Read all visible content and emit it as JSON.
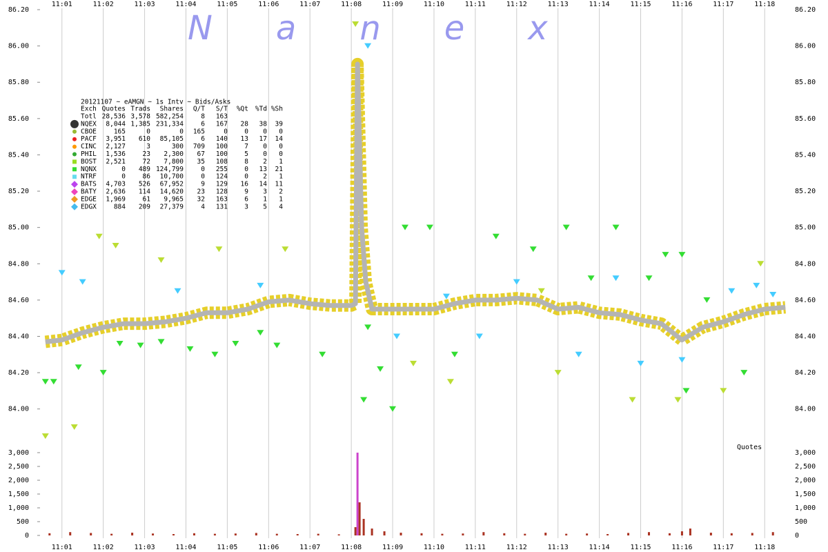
{
  "chart_data": [
    {
      "type": "line",
      "watermark": "Nanex",
      "stats_table": {
        "header": "20121107 ~ eAMGN ~ 1s Intv ~ Bids/Asks",
        "columns": [
          "Exch",
          "Quotes",
          "Trads",
          "Shares",
          "Q/T",
          "S/T",
          "%Qt",
          "%Td",
          "%Sh"
        ],
        "rows": [
          {
            "cells": [
              "Totl",
              "28,536",
              "3,578",
              "582,254",
              "8",
              "163"
            ]
          },
          {
            "cells": [
              "NQEX",
              "8,044",
              "1,385",
              "231,334",
              "6",
              "167",
              "28",
              "38",
              "39"
            ],
            "color": "#333333",
            "shape": "circle-large"
          },
          {
            "cells": [
              "CBOE",
              "165",
              "0",
              "0",
              "165",
              "0",
              "0",
              "0",
              "0"
            ],
            "color": "#99bb33",
            "shape": "circle"
          },
          {
            "cells": [
              "PACF",
              "3,951",
              "610",
              "85,105",
              "6",
              "140",
              "13",
              "17",
              "14"
            ],
            "color": "#ee2222",
            "shape": "circle"
          },
          {
            "cells": [
              "CINC",
              "2,127",
              "3",
              "300",
              "709",
              "100",
              "7",
              "0",
              "0"
            ],
            "color": "#ff9900",
            "shape": "circle"
          },
          {
            "cells": [
              "PHIL",
              "1,536",
              "23",
              "2,300",
              "67",
              "100",
              "5",
              "0",
              "0"
            ],
            "color": "#33aa33",
            "shape": "circle"
          },
          {
            "cells": [
              "BOST",
              "2,521",
              "72",
              "7,800",
              "35",
              "108",
              "8",
              "2",
              "1"
            ],
            "color": "#99dd22",
            "shape": "square"
          },
          {
            "cells": [
              "NQNX",
              "0",
              "489",
              "124,799",
              "0",
              "255",
              "0",
              "13",
              "21"
            ],
            "color": "#33dd33",
            "shape": "square"
          },
          {
            "cells": [
              "NTRF",
              "0",
              "86",
              "10,700",
              "0",
              "124",
              "0",
              "2",
              "1"
            ],
            "color": "#66ddee",
            "shape": "square"
          },
          {
            "cells": [
              "BATS",
              "4,703",
              "526",
              "67,952",
              "9",
              "129",
              "16",
              "14",
              "11"
            ],
            "color": "#bb44ee",
            "shape": "diamond"
          },
          {
            "cells": [
              "BATY",
              "2,636",
              "114",
              "14,620",
              "23",
              "128",
              "9",
              "3",
              "2"
            ],
            "color": "#ee44bb",
            "shape": "diamond"
          },
          {
            "cells": [
              "EDGE",
              "1,969",
              "61",
              "9,965",
              "32",
              "163",
              "6",
              "1",
              "1"
            ],
            "color": "#ee9922",
            "shape": "diamond"
          },
          {
            "cells": [
              "EDGX",
              "884",
              "209",
              "27,379",
              "4",
              "131",
              "3",
              "5",
              "4"
            ],
            "color": "#44bbee",
            "shape": "diamond"
          }
        ]
      },
      "xlim": [
        660.47,
        678.53
      ],
      "xticks": [
        {
          "value": 661,
          "label": "11:01"
        },
        {
          "value": 662,
          "label": "11:02"
        },
        {
          "value": 663,
          "label": "11:03"
        },
        {
          "value": 664,
          "label": "11:04"
        },
        {
          "value": 665,
          "label": "11:05"
        },
        {
          "value": 666,
          "label": "11:06"
        },
        {
          "value": 667,
          "label": "11:07"
        },
        {
          "value": 668,
          "label": "11:08"
        },
        {
          "value": 669,
          "label": "11:09"
        },
        {
          "value": 670,
          "label": "11:10"
        },
        {
          "value": 671,
          "label": "11:11"
        },
        {
          "value": 672,
          "label": "11:12"
        },
        {
          "value": 673,
          "label": "11:13"
        },
        {
          "value": 674,
          "label": "11:14"
        },
        {
          "value": 675,
          "label": "11:15"
        },
        {
          "value": 676,
          "label": "11:16"
        },
        {
          "value": 677,
          "label": "11:17"
        },
        {
          "value": 678,
          "label": "11:18"
        }
      ],
      "ylim": [
        83.9,
        86.2
      ],
      "yticks": [
        {
          "value": 84,
          "label": "84.00"
        },
        {
          "value": 84.2,
          "label": "84.20"
        },
        {
          "value": 84.4,
          "label": "84.40"
        },
        {
          "value": 84.6,
          "label": "84.60"
        },
        {
          "value": 84.8,
          "label": "84.80"
        },
        {
          "value": 85,
          "label": "85.00"
        },
        {
          "value": 85.2,
          "label": "85.20"
        },
        {
          "value": 85.4,
          "label": "85.40"
        },
        {
          "value": 85.6,
          "label": "85.60"
        },
        {
          "value": 85.8,
          "label": "85.80"
        },
        {
          "value": 86,
          "label": "86.00"
        },
        {
          "value": 86.2,
          "label": "86.20"
        }
      ],
      "grid": "x",
      "series": [
        {
          "color": "#b4b4b4",
          "band_color": "#e6cf2a",
          "x": [
            660.6,
            661,
            661.5,
            662,
            662.5,
            663,
            663.5,
            664,
            664.5,
            665,
            665.5,
            666,
            666.5,
            667,
            667.5,
            668,
            668.1,
            668.15,
            668.25,
            668.35,
            668.5,
            669,
            669.5,
            670,
            670.5,
            671,
            671.5,
            672,
            672.5,
            673,
            673.5,
            674,
            674.5,
            675,
            675.5,
            676,
            676.5,
            677,
            677.5,
            678,
            678.5
          ],
          "values": [
            84.37,
            84.38,
            84.42,
            84.45,
            84.47,
            84.47,
            84.48,
            84.5,
            84.53,
            84.53,
            84.55,
            84.59,
            84.6,
            84.58,
            84.57,
            84.57,
            84.58,
            85.9,
            85.0,
            84.7,
            84.55,
            84.55,
            84.55,
            84.55,
            84.58,
            84.6,
            84.6,
            84.61,
            84.6,
            84.55,
            84.56,
            84.53,
            84.52,
            84.49,
            84.47,
            84.38,
            84.45,
            84.48,
            84.52,
            84.55,
            84.56
          ]
        },
        {
          "color": "#33dd33",
          "marker": "triangle",
          "x": [
            660.6,
            660.8,
            661.4,
            662.0,
            662.4,
            662.9,
            663.4,
            664.1,
            664.7,
            665.2,
            665.8,
            666.2,
            667.3,
            668.3,
            668.4,
            668.7,
            669.0,
            669.3,
            669.9,
            670.5,
            671.5,
            672.4,
            673.2,
            673.8,
            674.4,
            675.2,
            675.6,
            676.0,
            676.1,
            676.6,
            677.5
          ],
          "values": [
            84.15,
            84.15,
            84.23,
            84.2,
            84.36,
            84.35,
            84.37,
            84.33,
            84.3,
            84.36,
            84.42,
            84.35,
            84.3,
            84.05,
            84.45,
            84.22,
            84.0,
            85.0,
            85.0,
            84.3,
            84.95,
            84.88,
            85.0,
            84.72,
            85.0,
            84.72,
            84.85,
            84.85,
            84.1,
            84.6,
            84.2
          ]
        },
        {
          "color": "#44ccff",
          "marker": "triangle",
          "x": [
            661.0,
            661.5,
            663.8,
            665.8,
            668.4,
            669.1,
            670.3,
            671.1,
            672.0,
            673.5,
            674.4,
            675.0,
            676.0,
            677.2,
            677.8,
            678.2
          ],
          "values": [
            84.75,
            84.7,
            84.65,
            84.68,
            86.0,
            84.4,
            84.62,
            84.4,
            84.7,
            84.3,
            84.72,
            84.25,
            84.27,
            84.65,
            84.68,
            84.63
          ]
        },
        {
          "color": "#bbdd33",
          "marker": "triangle",
          "x": [
            660.6,
            661.3,
            661.9,
            662.3,
            663.4,
            664.8,
            666.4,
            668.1,
            669.5,
            670.4,
            672.6,
            673.0,
            674.8,
            675.9,
            677.0,
            677.9
          ],
          "values": [
            83.85,
            83.9,
            84.95,
            84.9,
            84.82,
            84.88,
            84.88,
            86.12,
            84.25,
            84.15,
            84.65,
            84.2,
            84.05,
            84.05,
            84.1,
            84.8
          ]
        }
      ]
    },
    {
      "type": "bar",
      "label": "Quotes",
      "color": "#aa3322",
      "spike_color": "#cc44cc",
      "x": [
        660.7,
        661.2,
        661.7,
        662.2,
        662.7,
        663.2,
        663.7,
        664.2,
        664.7,
        665.2,
        665.7,
        666.2,
        666.7,
        667.2,
        667.7,
        668.1,
        668.15,
        668.2,
        668.3,
        668.5,
        668.8,
        669.2,
        669.7,
        670.2,
        670.7,
        671.2,
        671.7,
        672.2,
        672.7,
        673.2,
        673.7,
        674.2,
        674.7,
        675.2,
        675.7,
        676.0,
        676.2,
        676.7,
        677.2,
        677.7,
        678.2
      ],
      "values": [
        80,
        120,
        90,
        60,
        100,
        70,
        50,
        80,
        60,
        70,
        90,
        60,
        50,
        60,
        40,
        300,
        3000,
        1200,
        600,
        250,
        150,
        100,
        80,
        60,
        70,
        120,
        80,
        60,
        100,
        60,
        70,
        50,
        90,
        120,
        80,
        150,
        250,
        100,
        80,
        90,
        120
      ],
      "ylim": [
        0,
        3000
      ],
      "yticks": [
        0,
        500,
        {
          "value": 1000,
          "label": "1,000"
        },
        {
          "value": 1500,
          "label": "1,500"
        },
        {
          "value": 2000,
          "label": "2,000"
        },
        {
          "value": 2500,
          "label": "2,500"
        },
        {
          "value": 3000,
          "label": "3,000"
        }
      ]
    }
  ]
}
